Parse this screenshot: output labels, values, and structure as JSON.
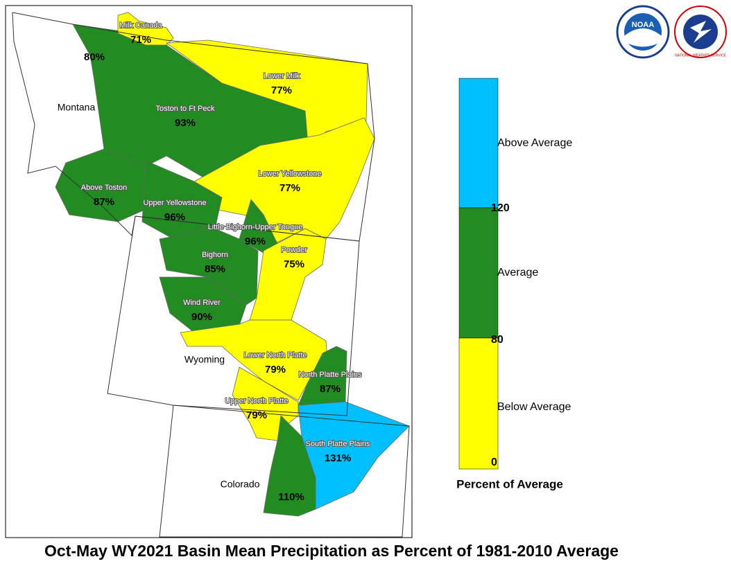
{
  "title": "Oct-May WY2021 Basin Mean Precipitation as Percent of 1981-2010 Average",
  "states": [
    "Montana",
    "Wyoming",
    "Colorado"
  ],
  "basins": [
    {
      "name": "Milk Canada",
      "value": "71%"
    },
    {
      "name": "",
      "value": "80%"
    },
    {
      "name": "Lower Milk",
      "value": "77%"
    },
    {
      "name": "Toston to Ft Peck",
      "value": "93%"
    },
    {
      "name": "Lower Yellowstone",
      "value": "77%"
    },
    {
      "name": "Above Toston",
      "value": "87%"
    },
    {
      "name": "Upper Yellowstone",
      "value": "96%"
    },
    {
      "name": "Little Bighorn-Upper Tongue",
      "value": "96%"
    },
    {
      "name": "Powder",
      "value": "75%"
    },
    {
      "name": "Bighorn",
      "value": "85%"
    },
    {
      "name": "Wind River",
      "value": "90%"
    },
    {
      "name": "Lower North Platte",
      "value": "79%"
    },
    {
      "name": "North Platte Plains",
      "value": "87%"
    },
    {
      "name": "Upper North Platte",
      "value": "79%"
    },
    {
      "name": "South Platte Plains",
      "value": "131%"
    },
    {
      "name": "",
      "value": "110%"
    }
  ],
  "legend": {
    "title": "Percent of Average",
    "categories": [
      "Above Average",
      "Average",
      "Below Average"
    ],
    "ticks": [
      "120",
      "80",
      "0"
    ]
  },
  "logos": {
    "noaa": "NOAA",
    "nws": "NATIONAL WEATHER SERVICE"
  }
}
